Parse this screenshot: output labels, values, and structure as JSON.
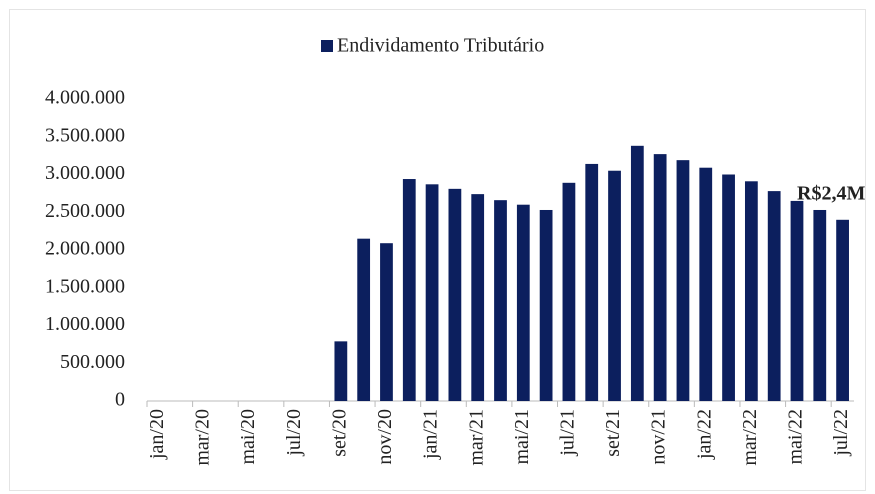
{
  "chart_data": {
    "type": "bar",
    "legend": "Endividamento Tributário",
    "annotation": "R$2,4M",
    "color": "#0c1f5e",
    "categories": [
      "jan/20",
      null,
      "mar/20",
      null,
      "mai/20",
      null,
      "jul/20",
      null,
      "set/20",
      null,
      "nov/20",
      null,
      "jan/21",
      null,
      "mar/21",
      null,
      "mai/21",
      null,
      "jul/21",
      null,
      "set/21",
      null,
      "nov/21",
      null,
      "jan/22",
      null,
      "mar/22",
      null,
      "mai/22",
      null,
      "jul/22"
    ],
    "values": [
      0,
      0,
      0,
      0,
      0,
      0,
      0,
      0,
      790000,
      2150000,
      2090000,
      2940000,
      2870000,
      2810000,
      2740000,
      2660000,
      2600000,
      2530000,
      2890000,
      3140000,
      3050000,
      3380000,
      3270000,
      3190000,
      3090000,
      3000000,
      2910000,
      2780000,
      2650000,
      2530000,
      2400000
    ],
    "ylim": [
      0,
      4000000
    ],
    "yticks": [
      0,
      {
        "value": 500000,
        "label": "500.000"
      },
      {
        "value": 1000000,
        "label": "1.000.000"
      },
      {
        "value": 1500000,
        "label": "1.500.000"
      },
      {
        "value": 2000000,
        "label": "2.000.000"
      },
      {
        "value": 2500000,
        "label": "2.500.000"
      },
      {
        "value": 3000000,
        "label": "3.000.000"
      },
      {
        "value": 3500000,
        "label": "3.500.000"
      },
      {
        "value": 4000000,
        "label": "4.000.000"
      }
    ],
    "grid": false
  }
}
